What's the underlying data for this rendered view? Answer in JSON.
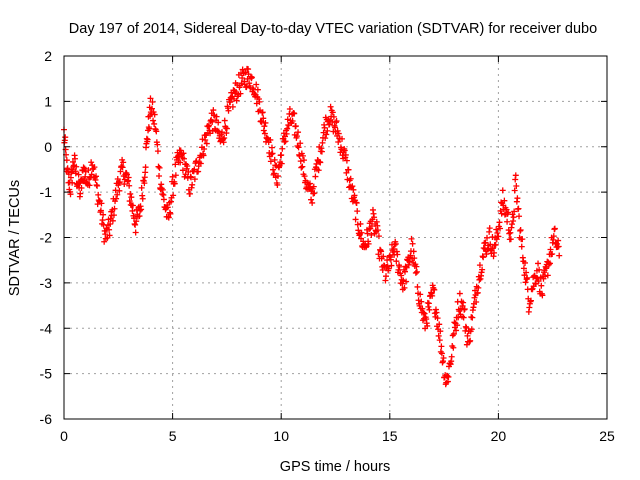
{
  "chart_data": {
    "type": "scatter",
    "title": "Day 197 of 2014, Sidereal Day-to-day VTEC variation (SDTVAR) for receiver dubo",
    "xlabel": "GPS time / hours",
    "ylabel": "SDTVAR / TECUs",
    "xlim": [
      0,
      25
    ],
    "ylim": [
      -6,
      2
    ],
    "xticks": [
      0,
      5,
      10,
      15,
      20,
      25
    ],
    "yticks": [
      -6,
      -5,
      -4,
      -3,
      -2,
      -1,
      0,
      1,
      2
    ],
    "grid": true,
    "marker": "+",
    "color": "#ff0000",
    "series": [
      {
        "name": "SDTVAR",
        "anchors": [
          [
            0.0,
            0.3
          ],
          [
            0.15,
            -0.6
          ],
          [
            0.3,
            -0.9
          ],
          [
            0.45,
            -0.3
          ],
          [
            0.6,
            -0.7
          ],
          [
            0.75,
            -1.0
          ],
          [
            0.9,
            -0.5
          ],
          [
            1.1,
            -0.8
          ],
          [
            1.3,
            -0.3
          ],
          [
            1.5,
            -0.9
          ],
          [
            1.7,
            -1.4
          ],
          [
            1.9,
            -2.0
          ],
          [
            2.1,
            -1.8
          ],
          [
            2.3,
            -1.3
          ],
          [
            2.5,
            -0.8
          ],
          [
            2.7,
            -0.5
          ],
          [
            2.9,
            -0.7
          ],
          [
            3.1,
            -1.2
          ],
          [
            3.3,
            -1.7
          ],
          [
            3.5,
            -1.4
          ],
          [
            3.7,
            -0.6
          ],
          [
            3.85,
            0.3
          ],
          [
            4.0,
            0.9
          ],
          [
            4.2,
            0.5
          ],
          [
            4.4,
            -0.6
          ],
          [
            4.6,
            -1.2
          ],
          [
            4.8,
            -1.6
          ],
          [
            5.0,
            -0.9
          ],
          [
            5.2,
            -0.4
          ],
          [
            5.4,
            -0.2
          ],
          [
            5.6,
            -0.5
          ],
          [
            5.8,
            -0.9
          ],
          [
            6.0,
            -0.6
          ],
          [
            6.2,
            -0.3
          ],
          [
            6.4,
            0.0
          ],
          [
            6.6,
            0.3
          ],
          [
            6.8,
            0.6
          ],
          [
            7.0,
            0.5
          ],
          [
            7.2,
            0.1
          ],
          [
            7.4,
            0.4
          ],
          [
            7.6,
            0.8
          ],
          [
            7.8,
            1.1
          ],
          [
            8.0,
            1.3
          ],
          [
            8.2,
            1.45
          ],
          [
            8.4,
            1.55
          ],
          [
            8.6,
            1.5
          ],
          [
            8.8,
            1.3
          ],
          [
            9.0,
            0.9
          ],
          [
            9.2,
            0.5
          ],
          [
            9.4,
            0.2
          ],
          [
            9.6,
            -0.3
          ],
          [
            9.8,
            -0.7
          ],
          [
            10.0,
            -0.2
          ],
          [
            10.2,
            0.3
          ],
          [
            10.4,
            0.6
          ],
          [
            10.6,
            0.5
          ],
          [
            10.8,
            0.1
          ],
          [
            11.0,
            -0.4
          ],
          [
            11.2,
            -0.9
          ],
          [
            11.4,
            -1.1
          ],
          [
            11.6,
            -0.6
          ],
          [
            11.8,
            -0.1
          ],
          [
            12.0,
            0.4
          ],
          [
            12.2,
            0.7
          ],
          [
            12.4,
            0.55
          ],
          [
            12.6,
            0.3
          ],
          [
            12.8,
            0.0
          ],
          [
            13.0,
            -0.4
          ],
          [
            13.2,
            -0.9
          ],
          [
            13.4,
            -1.3
          ],
          [
            13.6,
            -1.8
          ],
          [
            13.8,
            -2.2
          ],
          [
            14.0,
            -2.0
          ],
          [
            14.2,
            -1.6
          ],
          [
            14.4,
            -1.9
          ],
          [
            14.6,
            -2.5
          ],
          [
            14.8,
            -2.8
          ],
          [
            15.0,
            -2.6
          ],
          [
            15.2,
            -2.2
          ],
          [
            15.4,
            -2.6
          ],
          [
            15.6,
            -3.0
          ],
          [
            15.8,
            -2.7
          ],
          [
            16.0,
            -2.2
          ],
          [
            16.2,
            -2.8
          ],
          [
            16.4,
            -3.4
          ],
          [
            16.6,
            -3.9
          ],
          [
            16.8,
            -3.6
          ],
          [
            17.0,
            -3.2
          ],
          [
            17.2,
            -3.8
          ],
          [
            17.4,
            -4.5
          ],
          [
            17.6,
            -5.2
          ],
          [
            17.8,
            -4.7
          ],
          [
            18.0,
            -4.0
          ],
          [
            18.2,
            -3.4
          ],
          [
            18.4,
            -3.6
          ],
          [
            18.6,
            -4.3
          ],
          [
            18.8,
            -3.8
          ],
          [
            19.0,
            -3.1
          ],
          [
            19.2,
            -2.6
          ],
          [
            19.4,
            -2.2
          ],
          [
            19.6,
            -2.0
          ],
          [
            19.8,
            -2.3
          ],
          [
            20.0,
            -1.8
          ],
          [
            20.2,
            -1.2
          ],
          [
            20.4,
            -1.5
          ],
          [
            20.6,
            -2.0
          ],
          [
            20.8,
            -0.8
          ],
          [
            21.0,
            -1.9
          ],
          [
            21.2,
            -2.6
          ],
          [
            21.4,
            -3.4
          ],
          [
            21.6,
            -3.0
          ],
          [
            21.8,
            -2.7
          ],
          [
            22.0,
            -3.2
          ],
          [
            22.2,
            -2.8
          ],
          [
            22.4,
            -2.3
          ],
          [
            22.6,
            -2.0
          ],
          [
            22.8,
            -2.4
          ]
        ]
      }
    ]
  }
}
